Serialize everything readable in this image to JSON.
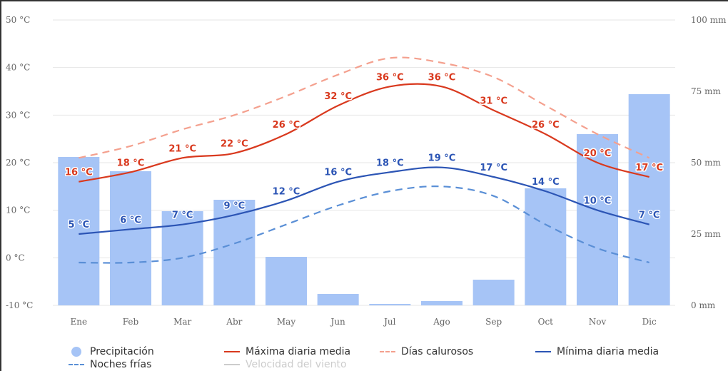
{
  "chart_data": {
    "type": "bar",
    "categories": [
      "Ene",
      "Feb",
      "Mar",
      "Abr",
      "May",
      "Jun",
      "Jul",
      "Ago",
      "Sep",
      "Oct",
      "Nov",
      "Dic"
    ],
    "y_left": {
      "ticks": [
        "50 °C",
        "40 °C",
        "30 °C",
        "20 °C",
        "10 °C",
        "0 °C",
        "-10 °C"
      ],
      "range": [
        -10,
        50
      ],
      "unit": "°C"
    },
    "y_right": {
      "ticks": [
        "100 mm",
        "75 mm",
        "50 mm",
        "25 mm",
        "0 mm"
      ],
      "range": [
        0,
        100
      ],
      "unit": "mm"
    },
    "grid": true,
    "series": [
      {
        "name": "Precipitación",
        "kind": "bar",
        "axis": "right",
        "color": "#a6c4f6",
        "values": [
          52,
          47,
          33,
          37,
          17,
          4,
          0.5,
          1.5,
          9,
          41,
          60,
          74
        ]
      },
      {
        "name": "Máxima diaria media",
        "kind": "line",
        "axis": "left",
        "color": "#d9391e",
        "values": [
          16,
          18,
          21,
          22,
          26,
          32,
          36,
          36,
          31,
          26,
          20,
          17
        ],
        "labels": [
          "16 °C",
          "18 °C",
          "21 °C",
          "22 °C",
          "26 °C",
          "32 °C",
          "36 °C",
          "36 °C",
          "31 °C",
          "26 °C",
          "20 °C",
          "17 °C"
        ]
      },
      {
        "name": "Días calurosos",
        "kind": "dashed",
        "axis": "left",
        "color": "#f4a08e",
        "values": [
          21,
          23.5,
          27,
          30,
          34,
          38.5,
          42,
          41,
          38,
          32,
          26,
          21
        ]
      },
      {
        "name": "Mínima diaria media",
        "kind": "line",
        "axis": "left",
        "color": "#2c55b5",
        "values": [
          5,
          6,
          7,
          9,
          12,
          16,
          18,
          19,
          17,
          14,
          10,
          7
        ],
        "labels": [
          "5 °C",
          "6 °C",
          "7 °C",
          "9 °C",
          "12 °C",
          "16 °C",
          "18 °C",
          "19 °C",
          "17 °C",
          "14 °C",
          "10 °C",
          "7 °C"
        ]
      },
      {
        "name": "Noches frías",
        "kind": "dashed",
        "axis": "left",
        "color": "#5a8fd6",
        "values": [
          -1,
          -1,
          0,
          3,
          7,
          11,
          14,
          15,
          13,
          7,
          2,
          -1
        ]
      }
    ],
    "legend_position": "bottom",
    "legend": [
      {
        "name": "Precipitación",
        "symbol": "dot",
        "color": "#a6c4f6"
      },
      {
        "name": "Máxima diaria media",
        "symbol": "line",
        "color": "#d9391e"
      },
      {
        "name": "Días calurosos",
        "symbol": "dash",
        "color": "#f4a08e"
      },
      {
        "name": "Mínima diaria media",
        "symbol": "line",
        "color": "#2c55b5"
      },
      {
        "name": "Noches frías",
        "symbol": "dash",
        "color": "#5a8fd6"
      },
      {
        "name": "Velocidad del viento",
        "symbol": "line",
        "color": "#cccccc",
        "disabled": true
      }
    ]
  }
}
